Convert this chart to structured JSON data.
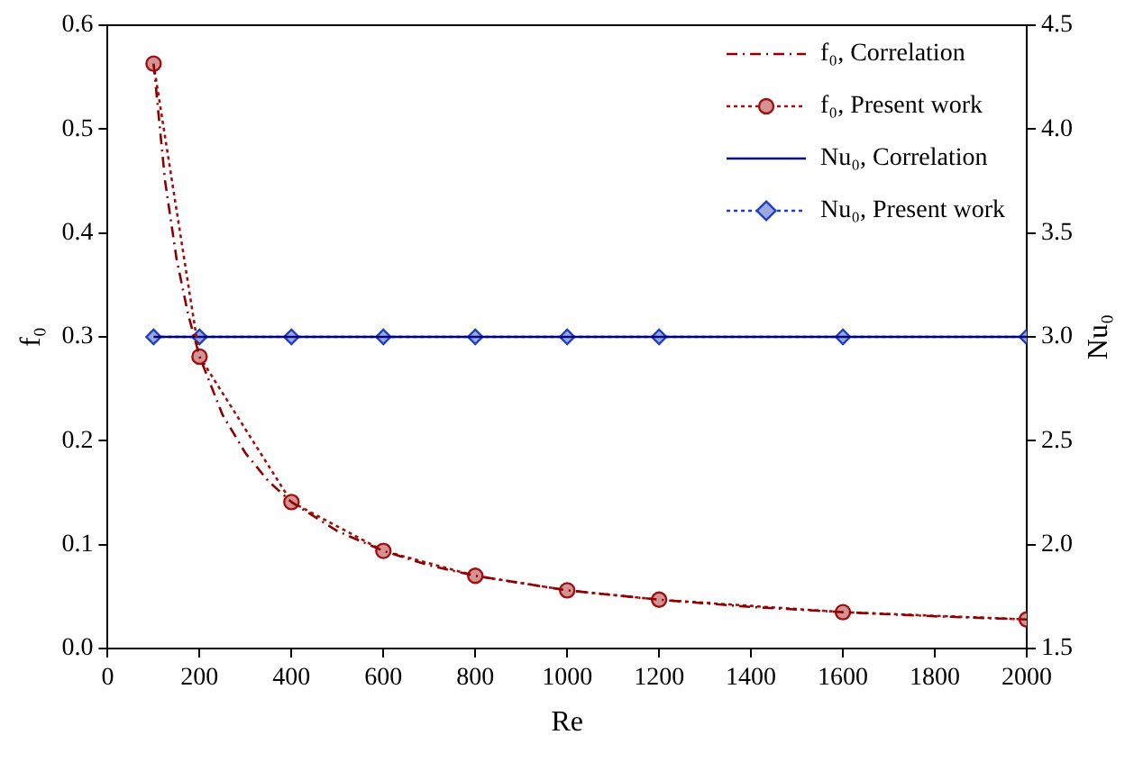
{
  "chart_data": {
    "type": "line",
    "xlabel": "Re",
    "ylabel": "f₀",
    "y2label": "Nu₀",
    "xlim": [
      0,
      2000
    ],
    "xticks": [
      0,
      200,
      400,
      600,
      800,
      1000,
      1200,
      1400,
      1600,
      1800,
      2000
    ],
    "ylim": [
      0,
      0.6
    ],
    "yticks": [
      {
        "value": 0,
        "label": "0.0"
      },
      0.1,
      0.2,
      0.3,
      0.4,
      0.5,
      0.6
    ],
    "y2lim": [
      1.5,
      4.5
    ],
    "y2ticks": [
      1.5,
      {
        "value": 2,
        "label": "2.0"
      },
      2.5,
      {
        "value": 3,
        "label": "3.0"
      },
      3.5,
      {
        "value": 4,
        "label": "4.0"
      },
      4.5
    ],
    "grid": false,
    "legend": "top right",
    "series": [
      {
        "name": "f₀, Correlation",
        "color": "#8b0000",
        "line_style": "dashed",
        "marker": "none",
        "x": [
          100,
          125,
          150,
          175,
          200,
          250,
          300,
          350,
          400,
          500,
          600,
          700,
          800,
          1000,
          1200,
          1400,
          1600,
          1800,
          2000
        ],
        "values": [
          0.563,
          0.45,
          0.375,
          0.322,
          0.281,
          0.225,
          0.188,
          0.161,
          0.141,
          0.113,
          0.094,
          0.08,
          0.07,
          0.056,
          0.047,
          0.04,
          0.035,
          0.031,
          0.028
        ]
      },
      {
        "name": "f₀, Present work",
        "color": "#a01010",
        "line_style": "dotted",
        "marker": "circle",
        "x": [
          100,
          200,
          400,
          600,
          800,
          1000,
          1200,
          1600,
          2000
        ],
        "values": [
          0.563,
          0.281,
          0.141,
          0.094,
          0.07,
          0.056,
          0.047,
          0.035,
          0.028
        ]
      },
      {
        "name": "Nu₀, Correlation",
        "color": "#000080",
        "line_style": "solid",
        "marker": "none",
        "axis": "y2",
        "x": [
          100,
          2000
        ],
        "values": [
          3.0,
          3.0
        ]
      },
      {
        "name": "Nu₀, Present work",
        "color": "#1f3fbf",
        "line_style": "dotted",
        "marker": "diamond",
        "axis": "y2",
        "x": [
          100,
          200,
          400,
          600,
          800,
          1000,
          1200,
          1600,
          2000
        ],
        "values": [
          3.0,
          3.0,
          3.0,
          3.0,
          3.0,
          3.0,
          3.0,
          3.0,
          3.0
        ]
      }
    ]
  }
}
